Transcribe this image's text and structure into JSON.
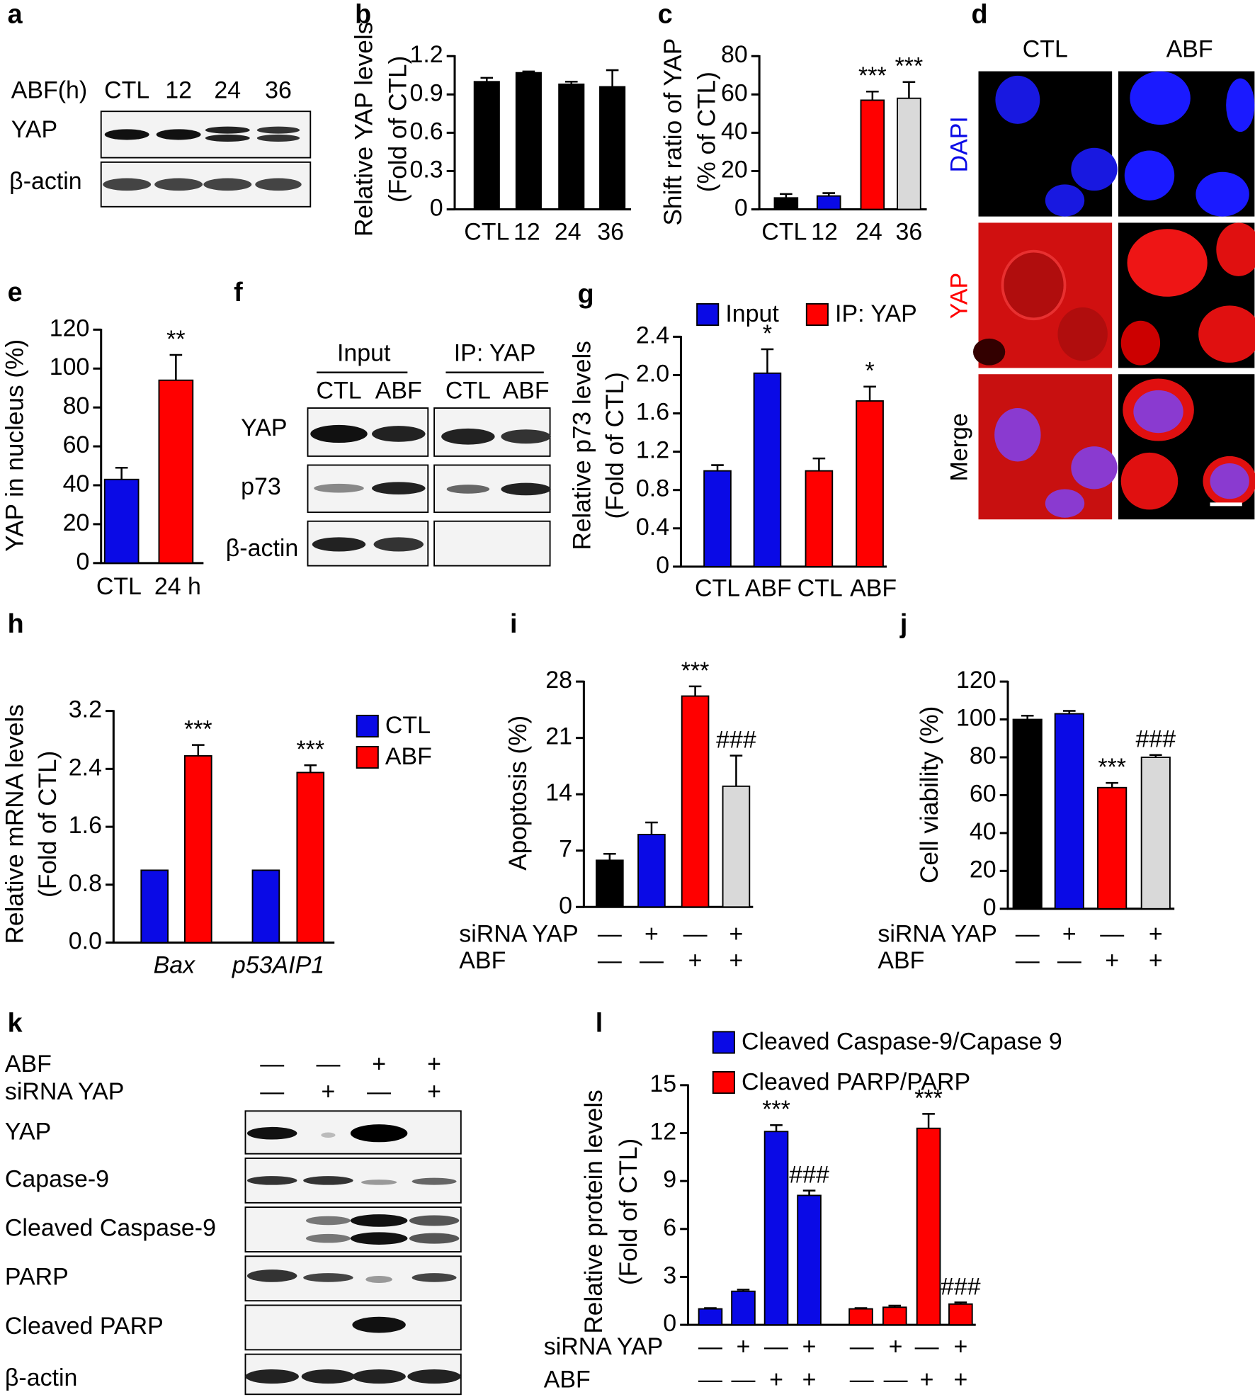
{
  "chart_data": [
    {
      "type": "bar",
      "panel": "b",
      "ylabel": [
        "Relative YAP levels",
        "(Fold of CTL)"
      ],
      "categories": [
        "CTL",
        "12",
        "24",
        "36"
      ],
      "values": [
        1.0,
        1.07,
        0.98,
        0.96
      ],
      "errors": [
        0.03,
        0.01,
        0.02,
        0.13
      ],
      "colors": [
        "#000000",
        "#000000",
        "#000000",
        "#000000"
      ],
      "ylim": [
        0,
        1.2
      ],
      "yticks": [
        0,
        0.3,
        0.6,
        0.9,
        1.2
      ]
    },
    {
      "type": "bar",
      "panel": "c",
      "ylabel": [
        "Shift ratio of YAP",
        "(% of CTL)"
      ],
      "categories": [
        "CTL",
        "12",
        "24",
        "36"
      ],
      "values": [
        6,
        7,
        57,
        58
      ],
      "errors": [
        2,
        1.5,
        4.5,
        8.5
      ],
      "annotations": [
        null,
        null,
        "***",
        "***"
      ],
      "colors": [
        "#000000",
        "#0a0ae6",
        "#ff0000",
        "#d9d9d9"
      ],
      "ylim": [
        0,
        80
      ],
      "yticks": [
        0,
        20,
        40,
        60,
        80
      ]
    },
    {
      "type": "bar",
      "panel": "e",
      "ylabel": [
        "YAP in nucleus (%)"
      ],
      "categories": [
        "CTL",
        "24 h"
      ],
      "values": [
        43,
        94
      ],
      "errors": [
        6,
        13
      ],
      "annotations": [
        null,
        "**"
      ],
      "colors": [
        "#0a0ae6",
        "#ff0000"
      ],
      "ylim": [
        0,
        120
      ],
      "yticks": [
        0,
        20,
        40,
        60,
        80,
        100,
        120
      ]
    },
    {
      "type": "bar",
      "panel": "g",
      "ylabel": [
        "Relative p73 levels",
        "(Fold of CTL)"
      ],
      "categories": [
        "CTL",
        "ABF",
        "CTL",
        "ABF"
      ],
      "series": [
        {
          "name": "Input",
          "color": "#0a0ae6",
          "values": [
            1.0,
            2.02,
            null,
            null
          ],
          "errors": [
            0.06,
            0.25,
            null,
            null
          ],
          "annotations": [
            null,
            "*",
            null,
            null
          ]
        },
        {
          "name": "IP: YAP",
          "color": "#ff0000",
          "values": [
            null,
            null,
            1.0,
            1.73
          ],
          "errors": [
            null,
            null,
            0.13,
            0.15
          ],
          "annotations": [
            null,
            null,
            null,
            "*"
          ]
        }
      ],
      "legend": true,
      "ylim": [
        0,
        2.4
      ],
      "yticks": [
        0,
        0.4,
        0.8,
        1.2,
        1.6,
        {
          "value": 2,
          "label": "2.0"
        },
        2.4
      ]
    },
    {
      "type": "bar",
      "panel": "h",
      "ylabel": [
        "Relative mRNA levels",
        "(Fold of CTL)"
      ],
      "categories": [
        "Bax",
        "p53AIP1"
      ],
      "series": [
        {
          "name": "CTL",
          "color": "#0a0ae6",
          "values": [
            1.0,
            1.0
          ]
        },
        {
          "name": "ABF",
          "color": "#ff0000",
          "values": [
            2.58,
            2.35
          ],
          "errors": [
            0.15,
            0.1
          ],
          "annotations": [
            "***",
            "***"
          ]
        }
      ],
      "legend": true,
      "ylim": [
        0,
        3.2
      ],
      "yticks": [
        {
          "value": 0,
          "label": "0.0"
        },
        0.8,
        1.6,
        2.4,
        3.2
      ]
    },
    {
      "type": "bar",
      "panel": "i",
      "ylabel": [
        "Apoptosis (%)"
      ],
      "values": [
        5.8,
        9.0,
        26.2,
        15.0
      ],
      "errors": [
        0.8,
        1.5,
        1.2,
        3.8
      ],
      "annotations": [
        null,
        null,
        "***",
        "###"
      ],
      "colors": [
        "#000000",
        "#0a0ae6",
        "#ff0000",
        "#d9d9d9"
      ],
      "rows": [
        {
          "label": "siRNA YAP",
          "marks": [
            "—",
            "+",
            "—",
            "+"
          ]
        },
        {
          "label": "ABF",
          "marks": [
            "—",
            "—",
            "+",
            "+"
          ]
        }
      ],
      "ylim": [
        0,
        28
      ],
      "yticks": [
        0,
        7,
        14,
        21,
        28
      ]
    },
    {
      "type": "bar",
      "panel": "j",
      "ylabel": [
        "Cell viability (%)"
      ],
      "values": [
        100,
        103,
        64,
        80
      ],
      "errors": [
        2,
        1.5,
        2.5,
        1.2
      ],
      "annotations": [
        null,
        null,
        "***",
        "###"
      ],
      "colors": [
        "#000000",
        "#0a0ae6",
        "#ff0000",
        "#d9d9d9"
      ],
      "rows": [
        {
          "label": "siRNA YAP",
          "marks": [
            "—",
            "+",
            "—",
            "+"
          ]
        },
        {
          "label": "ABF",
          "marks": [
            "—",
            "—",
            "+",
            "+"
          ]
        }
      ],
      "ylim": [
        0,
        120
      ],
      "yticks": [
        0,
        20,
        40,
        60,
        80,
        100,
        120
      ]
    },
    {
      "type": "bar",
      "panel": "l",
      "ylabel": [
        "Relative protein levels",
        "(Fold of CTL)"
      ],
      "series": [
        {
          "name": "Cleaved Caspase-9/Capase 9",
          "color": "#0a0ae6",
          "values": [
            1.0,
            2.1,
            12.1,
            8.1,
            null,
            null,
            null,
            null
          ],
          "errors": [
            0.05,
            0.1,
            0.4,
            0.3,
            null,
            null,
            null,
            null
          ],
          "annotations": [
            null,
            null,
            "***",
            "###",
            null,
            null,
            null,
            null
          ]
        },
        {
          "name": "Cleaved PARP/PARP",
          "color": "#ff0000",
          "values": [
            null,
            null,
            null,
            null,
            1.0,
            1.1,
            12.3,
            1.3
          ],
          "errors": [
            null,
            null,
            null,
            null,
            0.05,
            0.1,
            0.9,
            0.1
          ],
          "annotations": [
            null,
            null,
            null,
            null,
            null,
            null,
            "***",
            "###"
          ]
        }
      ],
      "legend": true,
      "rows": [
        {
          "label": "siRNA YAP",
          "marks": [
            "—",
            "+",
            "—",
            "+",
            "—",
            "+",
            "—",
            "+"
          ]
        },
        {
          "label": "ABF",
          "marks": [
            "—",
            "—",
            "+",
            "+",
            "—",
            "—",
            "+",
            "+"
          ]
        }
      ],
      "ylim": [
        0,
        15
      ],
      "yticks": [
        0,
        3,
        6,
        9,
        12,
        15
      ]
    }
  ],
  "blots": {
    "a": {
      "panel": "a",
      "header_label": "ABF(h)",
      "lanes": [
        "CTL",
        "12",
        "24",
        "36"
      ],
      "rows": [
        "YAP",
        "β-actin"
      ]
    },
    "f": {
      "panel": "f",
      "groups": [
        {
          "label": "Input",
          "lanes": [
            "CTL",
            "ABF"
          ]
        },
        {
          "label": "IP: YAP",
          "lanes": [
            "CTL",
            "ABF"
          ]
        }
      ],
      "rows": [
        "YAP",
        "p73",
        "β-actin"
      ]
    },
    "k": {
      "panel": "k",
      "conditions": [
        {
          "label": "ABF",
          "marks": [
            "—",
            "—",
            "+",
            "+"
          ]
        },
        {
          "label": "siRNA YAP",
          "marks": [
            "—",
            "+",
            "—",
            "+"
          ]
        }
      ],
      "rows": [
        "YAP",
        "Capase-9",
        "Cleaved Caspase-9",
        "PARP",
        "Cleaved PARP",
        "β-actin"
      ]
    }
  },
  "images": {
    "d": {
      "panel": "d",
      "columns": [
        "CTL",
        "ABF"
      ],
      "rows": [
        "DAPI",
        "YAP",
        "Merge"
      ]
    }
  }
}
